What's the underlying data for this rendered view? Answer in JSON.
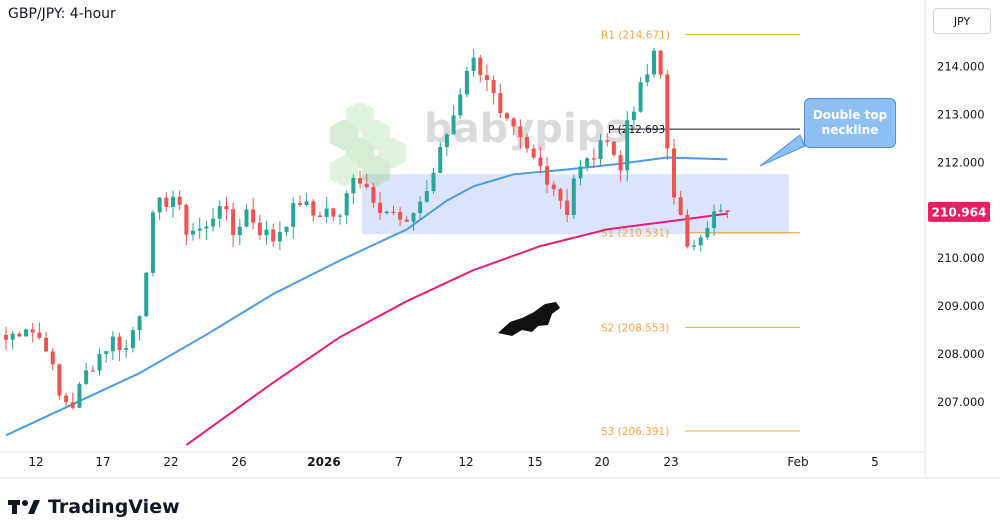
{
  "header": {
    "title": "GBP/JPY: 4-hour",
    "currency": "JPY"
  },
  "brand": {
    "name": "TradingView",
    "watermark": "babypips"
  },
  "annotation": {
    "callout": "Double top neckline"
  },
  "chart_data": {
    "type": "candlestick",
    "symbol": "GBP/JPY",
    "timeframe": "4-hour",
    "ylim": [
      206.1,
      214.9
    ],
    "y_ticks": [
      "214.000",
      "213.000",
      "212.000",
      "211.000",
      "210.000",
      "209.000",
      "208.000",
      "207.000"
    ],
    "y_tick_values": [
      214,
      213,
      212,
      211,
      210,
      209,
      208,
      207
    ],
    "x_ticks": [
      "12",
      "17",
      "22",
      "26",
      "2026",
      "7",
      "12",
      "15",
      "20",
      "23",
      "Feb",
      "5"
    ],
    "last_price": "210.964",
    "last_price_value": 210.964,
    "pivot_levels": [
      {
        "label": "R1 (214.671)",
        "value": 214.671,
        "color": "#f7a440"
      },
      {
        "label": "P (212.693)",
        "value": 212.693,
        "color": "#131722"
      },
      {
        "label": "S1 (210.531)",
        "value": 210.531,
        "color": "#f7a440"
      },
      {
        "label": "S2 (208.553)",
        "value": 208.553,
        "color": "#f7a440"
      },
      {
        "label": "S3 (206.391)",
        "value": 206.391,
        "color": "#f7a440"
      }
    ],
    "zone": {
      "top": 211.75,
      "bottom": 210.5
    },
    "colors": {
      "up": "#26a69a",
      "down": "#ef5350",
      "ma_blue": "#4a9ae8",
      "ma_pink": "#e91e78",
      "zone": "#d6dffb"
    },
    "close_path": [
      [
        0,
        208.3
      ],
      [
        3,
        208.6
      ],
      [
        6,
        208.2
      ],
      [
        8,
        207.1
      ],
      [
        10,
        206.95
      ],
      [
        12,
        207.6
      ],
      [
        14,
        208.0
      ],
      [
        16,
        208.3
      ],
      [
        18,
        208.1
      ],
      [
        20,
        208.9
      ],
      [
        22,
        210.8
      ],
      [
        23,
        211.1
      ],
      [
        25,
        211.3
      ],
      [
        27,
        210.6
      ],
      [
        30,
        210.6
      ],
      [
        32,
        211.2
      ],
      [
        34,
        210.5
      ],
      [
        36,
        211.0
      ],
      [
        38,
        210.6
      ],
      [
        40,
        210.4
      ],
      [
        42,
        210.8
      ],
      [
        44,
        211.2
      ],
      [
        46,
        210.9
      ],
      [
        48,
        211.0
      ],
      [
        50,
        210.8
      ],
      [
        52,
        211.8
      ],
      [
        54,
        211.5
      ],
      [
        56,
        211.1
      ],
      [
        58,
        210.9
      ],
      [
        60,
        210.6
      ],
      [
        61,
        211.0
      ],
      [
        63,
        211.4
      ],
      [
        65,
        212.2
      ],
      [
        67,
        213.0
      ],
      [
        69,
        214.0
      ],
      [
        70,
        214.1
      ],
      [
        72,
        213.8
      ],
      [
        74,
        212.9
      ],
      [
        76,
        212.6
      ],
      [
        78,
        212.2
      ],
      [
        80,
        211.9
      ],
      [
        82,
        211.5
      ],
      [
        84,
        211.0
      ],
      [
        85,
        211.7
      ],
      [
        87,
        212.0
      ],
      [
        89,
        212.3
      ],
      [
        90,
        212.6
      ],
      [
        92,
        211.8
      ],
      [
        93,
        212.9
      ],
      [
        95,
        213.5
      ],
      [
        97,
        214.2
      ],
      [
        98,
        213.8
      ],
      [
        99,
        212.3
      ],
      [
        100,
        211.4
      ],
      [
        101,
        210.8
      ],
      [
        102,
        210.1
      ],
      [
        104,
        210.6
      ],
      [
        106,
        210.9
      ],
      [
        108,
        210.96
      ]
    ],
    "ma_blue": [
      [
        0,
        206.3
      ],
      [
        10,
        206.95
      ],
      [
        20,
        207.6
      ],
      [
        30,
        208.4
      ],
      [
        40,
        209.25
      ],
      [
        50,
        209.95
      ],
      [
        60,
        210.6
      ],
      [
        66,
        211.2
      ],
      [
        70,
        211.5
      ],
      [
        76,
        211.75
      ],
      [
        84,
        211.85
      ],
      [
        92,
        211.97
      ],
      [
        99,
        212.1
      ],
      [
        108,
        212.06
      ]
    ],
    "ma_pink": [
      [
        27,
        206.1
      ],
      [
        40,
        207.4
      ],
      [
        50,
        208.35
      ],
      [
        60,
        209.1
      ],
      [
        70,
        209.75
      ],
      [
        80,
        210.25
      ],
      [
        90,
        210.6
      ],
      [
        100,
        210.78
      ],
      [
        108,
        210.93
      ]
    ]
  }
}
